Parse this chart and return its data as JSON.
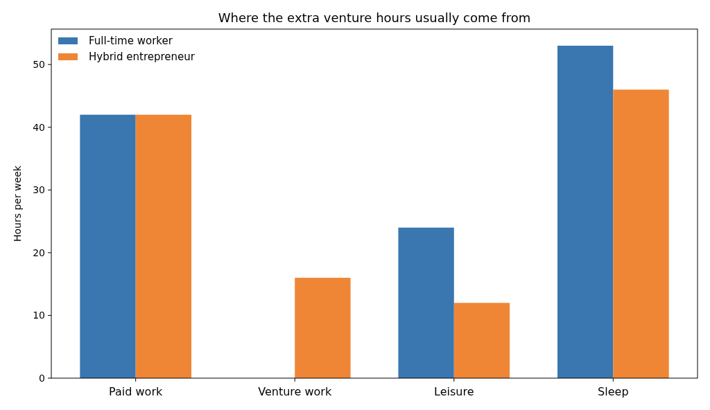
{
  "chart_data": {
    "type": "bar",
    "title": "Where the extra venture hours usually come from",
    "ylabel": "Hours per week",
    "categories": [
      "Paid work",
      "Venture work",
      "Leisure",
      "Sleep"
    ],
    "series": [
      {
        "name": "Full-time worker",
        "color": "#3a76af",
        "values": [
          42,
          0,
          24,
          53
        ]
      },
      {
        "name": "Hybrid entrepreneur",
        "color": "#ef8636",
        "values": [
          42,
          16,
          12,
          46
        ]
      }
    ],
    "ylim": [
      0,
      55.65
    ],
    "yticks": [
      0,
      10,
      20,
      30,
      40,
      50
    ],
    "legend": "top left",
    "grid": false
  }
}
